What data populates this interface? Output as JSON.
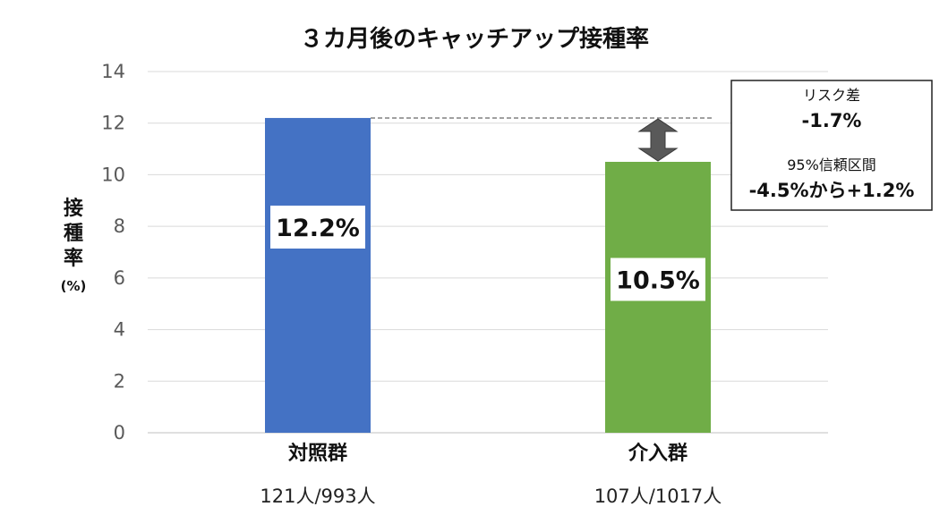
{
  "chart_data": {
    "type": "bar",
    "title": "３カ月後のキャッチアップ接種率",
    "ylabel_chars": [
      "接",
      "種",
      "率"
    ],
    "ylabel_unit": "(%)",
    "ylim": [
      0,
      14
    ],
    "yticks": [
      0,
      2,
      4,
      6,
      8,
      10,
      12,
      14
    ],
    "grid": true,
    "categories": [
      "対照群",
      "介入群"
    ],
    "category_sublabels": [
      "121人/993人",
      "107人/1017人"
    ],
    "values": [
      12.2,
      10.5
    ],
    "value_labels": [
      "12.2%",
      "10.5%"
    ],
    "colors": [
      "#4472C4",
      "#70AD47"
    ],
    "annotation": {
      "risk_diff_label": "リスク差",
      "risk_diff_value": "-1.7%",
      "ci_label": "95%信頼区間",
      "ci_value": "-4.5%から+1.2%"
    }
  }
}
